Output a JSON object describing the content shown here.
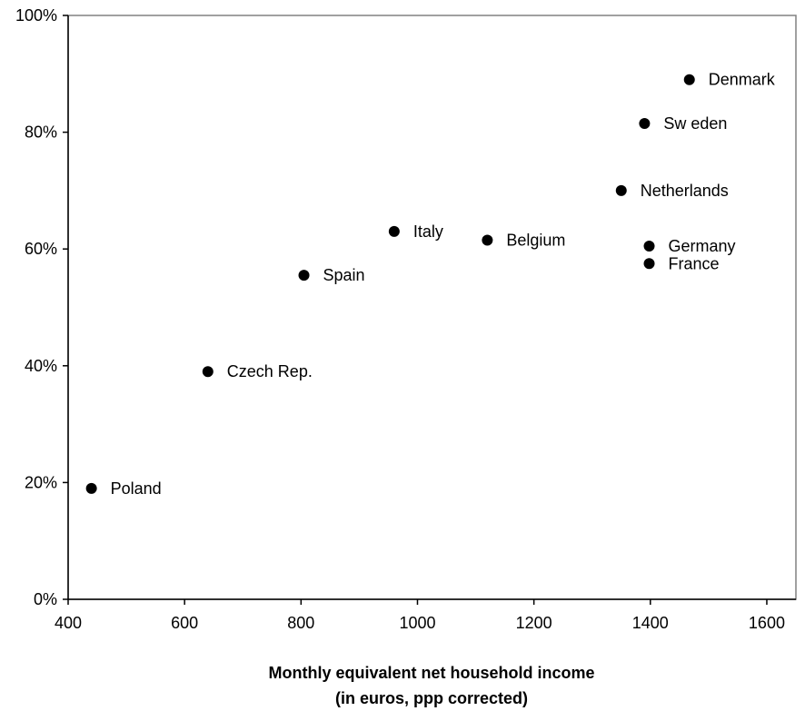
{
  "chart_data": {
    "type": "scatter",
    "title": "",
    "xlabel_lines": [
      "Monthly equivalent net household  income",
      "(in euros, ppp corrected)"
    ],
    "ylabel": "",
    "xlim": [
      400,
      1650
    ],
    "ylim": [
      0,
      100
    ],
    "x_ticks": [
      400,
      600,
      800,
      1000,
      1200,
      1400,
      1600
    ],
    "y_ticks": [
      0,
      20,
      40,
      60,
      80,
      100
    ],
    "y_tick_labels": [
      "0%",
      "20%",
      "40%",
      "60%",
      "80%",
      "100%"
    ],
    "grid": false,
    "legend": "none",
    "marker_color": "#000000",
    "points": [
      {
        "label": "Poland",
        "x": 440,
        "y": 19
      },
      {
        "label": "Czech Rep.",
        "x": 640,
        "y": 39
      },
      {
        "label": "Spain",
        "x": 805,
        "y": 55.5
      },
      {
        "label": "Italy",
        "x": 960,
        "y": 63
      },
      {
        "label": "Belgium",
        "x": 1120,
        "y": 61.5
      },
      {
        "label": "Netherlands",
        "x": 1350,
        "y": 70
      },
      {
        "label": "Germany",
        "x": 1398,
        "y": 60.5
      },
      {
        "label": "France",
        "x": 1398,
        "y": 57.5
      },
      {
        "label": "Sw eden",
        "x": 1390,
        "y": 81.5
      },
      {
        "label": "Denmark",
        "x": 1467,
        "y": 89
      }
    ]
  }
}
